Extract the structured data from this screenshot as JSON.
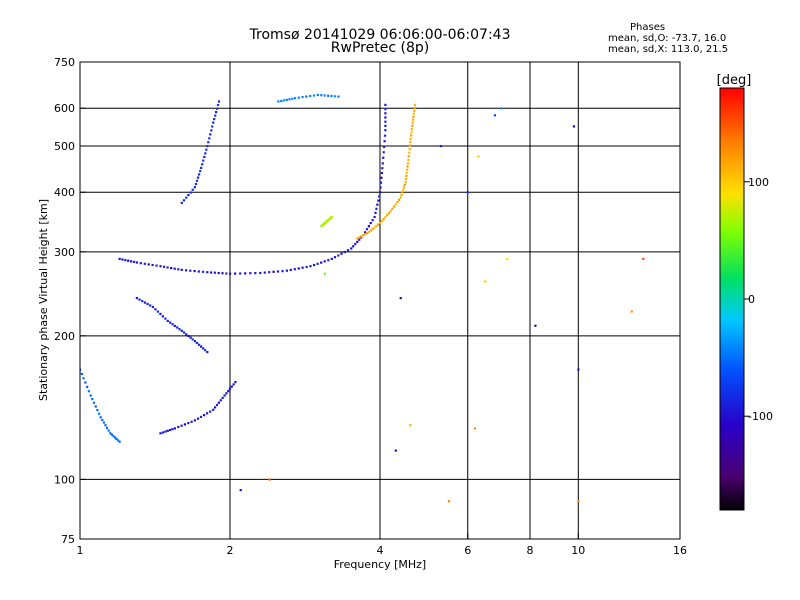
{
  "chart_data": {
    "type": "scatter",
    "title": "Tromsø 20141029 06:06:00-06:07:43",
    "subtitle": "RwPretec (8p)",
    "xlabel": "Frequency [MHz]",
    "ylabel": "Stationary phase Virtual Height [km]",
    "x_scale": "log",
    "y_scale": "log",
    "xlim": [
      1,
      16
    ],
    "ylim": [
      75,
      750
    ],
    "x_ticks": [
      1,
      2,
      4,
      6,
      8,
      10,
      16
    ],
    "x_tick_labels": [
      "1",
      "2",
      "4",
      "6",
      "8",
      "10",
      "16"
    ],
    "x_grid": [
      2,
      4,
      6,
      8,
      10
    ],
    "y_ticks": [
      75,
      100,
      200,
      300,
      400,
      500,
      600,
      750
    ],
    "y_tick_labels": [
      "75",
      "100",
      "200",
      "300",
      "400",
      "500",
      "600",
      "750"
    ],
    "y_grid": [
      100,
      200,
      300,
      400,
      500,
      600
    ],
    "grid": true,
    "stats_header": "Phases",
    "stats_o": "mean, sd,O: -73.7, 16.0",
    "stats_x": "mean, sd,X: 113.0, 21.5",
    "colorbar": {
      "label": "[deg]",
      "range": [
        -180,
        180
      ],
      "ticks": [
        100,
        0,
        -100
      ],
      "tick_labels": [
        "100",
        "0",
        "-100"
      ],
      "colormap": "rainbow (black-purple-blue-cyan-green-yellow-orange-red)"
    },
    "echo_traces": [
      {
        "name": "",
        "phase": -100,
        "points": [
          [
            1.2,
            290
          ],
          [
            1.3,
            285
          ],
          [
            1.45,
            280
          ],
          [
            1.6,
            275
          ],
          [
            1.8,
            272
          ],
          [
            2.0,
            270
          ],
          [
            2.3,
            271
          ],
          [
            2.6,
            274
          ],
          [
            2.9,
            280
          ],
          [
            3.2,
            290
          ],
          [
            3.5,
            305
          ],
          [
            3.7,
            325
          ],
          [
            3.9,
            355
          ],
          [
            4.0,
            400
          ],
          [
            4.05,
            460
          ],
          [
            4.1,
            540
          ],
          [
            4.1,
            610
          ]
        ]
      },
      {
        "name": "",
        "phase": -100,
        "points": [
          [
            1.45,
            125
          ],
          [
            1.55,
            128
          ],
          [
            1.7,
            133
          ],
          [
            1.85,
            140
          ],
          [
            1.95,
            150
          ],
          [
            2.05,
            160
          ]
        ]
      },
      {
        "name": "",
        "phase": -95,
        "points": [
          [
            1.3,
            240
          ],
          [
            1.4,
            230
          ],
          [
            1.5,
            215
          ],
          [
            1.6,
            205
          ],
          [
            1.7,
            195
          ],
          [
            1.8,
            185
          ]
        ]
      },
      {
        "name": "",
        "phase": -90,
        "points": [
          [
            1.6,
            380
          ],
          [
            1.7,
            410
          ],
          [
            1.75,
            450
          ],
          [
            1.8,
            500
          ],
          [
            1.85,
            560
          ],
          [
            1.9,
            620
          ]
        ]
      },
      {
        "name": "",
        "phase": 110,
        "points": [
          [
            3.6,
            320
          ],
          [
            3.8,
            330
          ],
          [
            4.0,
            345
          ],
          [
            4.2,
            365
          ],
          [
            4.4,
            390
          ],
          [
            4.5,
            420
          ],
          [
            4.55,
            460
          ],
          [
            4.6,
            510
          ],
          [
            4.65,
            560
          ],
          [
            4.7,
            610
          ]
        ]
      },
      {
        "name": "",
        "phase": 70,
        "points": [
          [
            3.05,
            340
          ],
          [
            3.1,
            345
          ],
          [
            3.15,
            350
          ],
          [
            3.2,
            355
          ]
        ]
      },
      {
        "name": "",
        "phase": -50,
        "points": [
          [
            2.5,
            620
          ],
          [
            2.7,
            630
          ],
          [
            3.0,
            640
          ],
          [
            3.3,
            635
          ]
        ]
      },
      {
        "name": "",
        "phase": -60,
        "points": [
          [
            1.0,
            170
          ],
          [
            1.05,
            150
          ],
          [
            1.1,
            135
          ],
          [
            1.15,
            125
          ],
          [
            1.2,
            120
          ]
        ]
      }
    ],
    "scatter_points": [
      {
        "x": 6.2,
        "y": 128,
        "phase": 120
      },
      {
        "x": 6.5,
        "y": 260,
        "phase": 100
      },
      {
        "x": 7.2,
        "y": 290,
        "phase": 90
      },
      {
        "x": 8.2,
        "y": 210,
        "phase": -120
      },
      {
        "x": 10.0,
        "y": 170,
        "phase": -100
      },
      {
        "x": 13.5,
        "y": 290,
        "phase": 150
      },
      {
        "x": 9.8,
        "y": 550,
        "phase": -110
      },
      {
        "x": 5.3,
        "y": 500,
        "phase": -90
      },
      {
        "x": 4.4,
        "y": 240,
        "phase": -140
      },
      {
        "x": 6.0,
        "y": 400,
        "phase": -80
      },
      {
        "x": 7.0,
        "y": 600,
        "phase": -40
      },
      {
        "x": 2.1,
        "y": 95,
        "phase": -100
      },
      {
        "x": 4.3,
        "y": 115,
        "phase": -110
      },
      {
        "x": 5.5,
        "y": 90,
        "phase": 130
      },
      {
        "x": 12.8,
        "y": 225,
        "phase": 120
      },
      {
        "x": 3.1,
        "y": 270,
        "phase": 60
      },
      {
        "x": 2.4,
        "y": 100,
        "phase": 140
      },
      {
        "x": 10.0,
        "y": 90,
        "phase": 130
      },
      {
        "x": 4.6,
        "y": 130,
        "phase": 110
      },
      {
        "x": 6.3,
        "y": 475,
        "phase": 100
      },
      {
        "x": 6.8,
        "y": 580,
        "phase": -70
      }
    ]
  }
}
